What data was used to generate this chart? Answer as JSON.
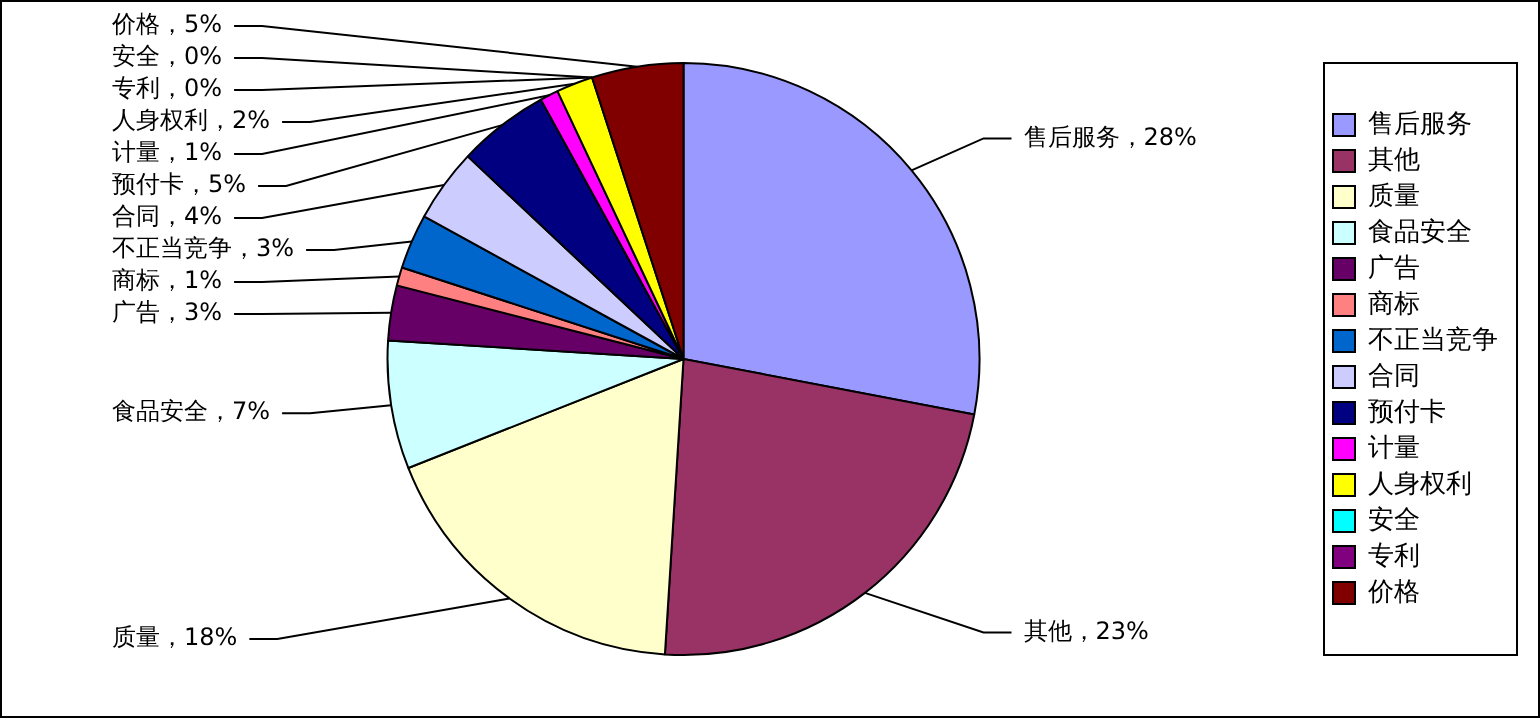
{
  "chart_data": {
    "type": "pie",
    "categories": [
      "售后服务",
      "其他",
      "质量",
      "食品安全",
      "广告",
      "商标",
      "不正当竞争",
      "合同",
      "预付卡",
      "计量",
      "人身权利",
      "安全",
      "专利",
      "价格"
    ],
    "values": [
      28,
      23,
      18,
      7,
      3,
      1,
      3,
      4,
      5,
      1,
      2,
      0,
      0,
      5
    ],
    "colors": [
      "#9999ff",
      "#993366",
      "#ffffcc",
      "#ccffff",
      "#660066",
      "#ff8080",
      "#0066cc",
      "#ccccff",
      "#000080",
      "#ff00ff",
      "#ffff00",
      "#00ffff",
      "#800080",
      "#800000"
    ],
    "value_labels": [
      "，28%",
      "，23%",
      "，18%",
      "，7%",
      "，3%",
      "，1%",
      "，3%",
      "，4%",
      "，5%",
      "，1%",
      "，2%",
      "，0%",
      "，0%",
      "，5%"
    ],
    "legend": "right"
  }
}
